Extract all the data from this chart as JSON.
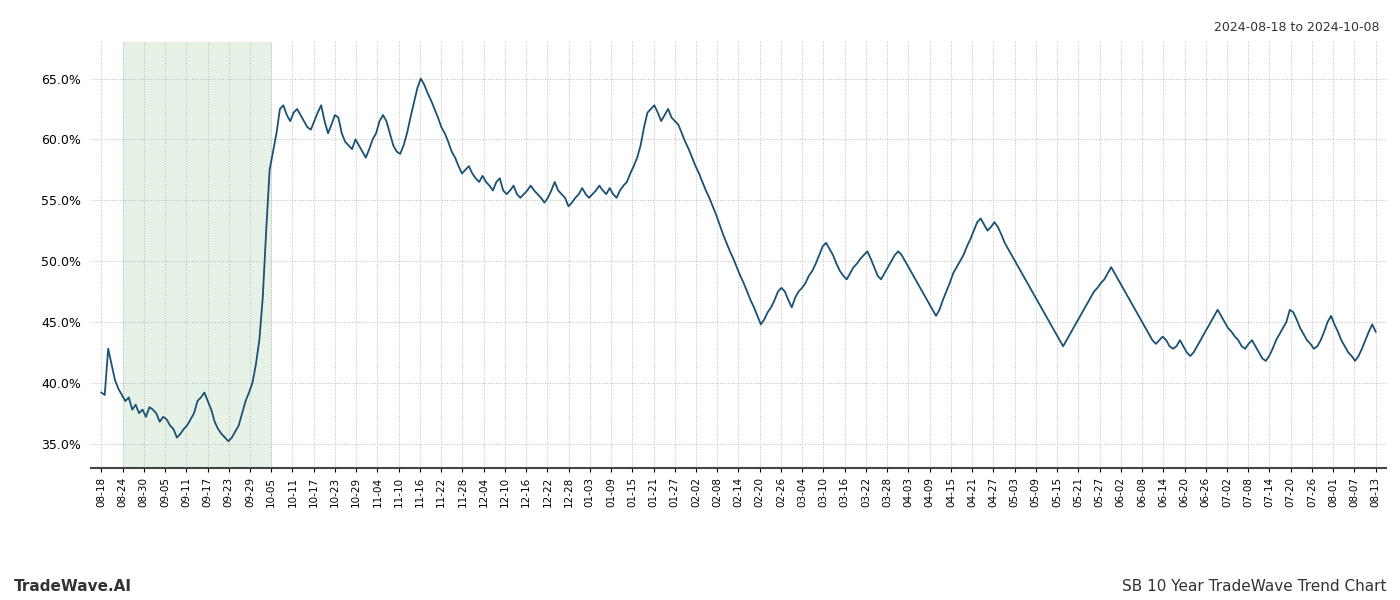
{
  "title_date_range": "2024-08-18 to 2024-10-08",
  "title_chart": "SB 10 Year TradeWave Trend Chart",
  "title_brand": "TradeWave.AI",
  "line_color": "#1a5276",
  "line_width": 1.3,
  "shade_color": "#d5e8d4",
  "shade_alpha": 0.55,
  "background_color": "#ffffff",
  "grid_color": "#bbbbbb",
  "ylim": [
    33.0,
    68.0
  ],
  "yticks": [
    35.0,
    40.0,
    45.0,
    50.0,
    55.0,
    60.0,
    65.0
  ],
  "x_labels": [
    "08-18",
    "08-24",
    "08-30",
    "09-05",
    "09-11",
    "09-17",
    "09-23",
    "09-29",
    "10-05",
    "10-11",
    "10-17",
    "10-23",
    "10-29",
    "11-04",
    "11-10",
    "11-16",
    "11-22",
    "11-28",
    "12-04",
    "12-10",
    "12-16",
    "12-22",
    "12-28",
    "01-03",
    "01-09",
    "01-15",
    "01-21",
    "01-27",
    "02-02",
    "02-08",
    "02-14",
    "02-20",
    "02-26",
    "03-04",
    "03-10",
    "03-16",
    "03-22",
    "03-28",
    "04-03",
    "04-09",
    "04-15",
    "04-21",
    "04-27",
    "05-03",
    "05-09",
    "05-15",
    "05-21",
    "05-27",
    "06-02",
    "06-08",
    "06-14",
    "06-20",
    "06-26",
    "07-02",
    "07-08",
    "07-14",
    "07-20",
    "07-26",
    "08-01",
    "08-07",
    "08-13"
  ],
  "shade_start_label": "08-24",
  "shade_end_label": "10-05",
  "values": [
    39.2,
    39.0,
    42.8,
    41.5,
    40.2,
    39.5,
    39.0,
    38.5,
    38.8,
    37.8,
    38.2,
    37.5,
    37.8,
    37.2,
    38.0,
    37.8,
    37.5,
    36.8,
    37.2,
    37.0,
    36.5,
    36.2,
    35.5,
    35.8,
    36.2,
    36.5,
    37.0,
    37.5,
    38.5,
    38.8,
    39.2,
    38.5,
    37.8,
    36.8,
    36.2,
    35.8,
    35.5,
    35.2,
    35.5,
    36.0,
    36.5,
    37.5,
    38.5,
    39.2,
    40.0,
    41.5,
    43.5,
    47.0,
    52.5,
    57.5,
    59.0,
    60.5,
    62.5,
    62.8,
    62.0,
    61.5,
    62.2,
    62.5,
    62.0,
    61.5,
    61.0,
    60.8,
    61.5,
    62.2,
    62.8,
    61.5,
    60.5,
    61.2,
    62.0,
    61.8,
    60.5,
    59.8,
    59.5,
    59.2,
    60.0,
    59.5,
    59.0,
    58.5,
    59.2,
    60.0,
    60.5,
    61.5,
    62.0,
    61.5,
    60.5,
    59.5,
    59.0,
    58.8,
    59.5,
    60.5,
    61.8,
    63.0,
    64.2,
    65.0,
    64.5,
    63.8,
    63.2,
    62.5,
    61.8,
    61.0,
    60.5,
    59.8,
    59.0,
    58.5,
    57.8,
    57.2,
    57.5,
    57.8,
    57.2,
    56.8,
    56.5,
    57.0,
    56.5,
    56.2,
    55.8,
    56.5,
    56.8,
    55.8,
    55.5,
    55.8,
    56.2,
    55.5,
    55.2,
    55.5,
    55.8,
    56.2,
    55.8,
    55.5,
    55.2,
    54.8,
    55.2,
    55.8,
    56.5,
    55.8,
    55.5,
    55.2,
    54.5,
    54.8,
    55.2,
    55.5,
    56.0,
    55.5,
    55.2,
    55.5,
    55.8,
    56.2,
    55.8,
    55.5,
    56.0,
    55.5,
    55.2,
    55.8,
    56.2,
    56.5,
    57.2,
    57.8,
    58.5,
    59.5,
    61.0,
    62.2,
    62.5,
    62.8,
    62.2,
    61.5,
    62.0,
    62.5,
    61.8,
    61.5,
    61.2,
    60.5,
    59.8,
    59.2,
    58.5,
    57.8,
    57.2,
    56.5,
    55.8,
    55.2,
    54.5,
    53.8,
    53.0,
    52.2,
    51.5,
    50.8,
    50.2,
    49.5,
    48.8,
    48.2,
    47.5,
    46.8,
    46.2,
    45.5,
    44.8,
    45.2,
    45.8,
    46.2,
    46.8,
    47.5,
    47.8,
    47.5,
    46.8,
    46.2,
    47.0,
    47.5,
    47.8,
    48.2,
    48.8,
    49.2,
    49.8,
    50.5,
    51.2,
    51.5,
    51.0,
    50.5,
    49.8,
    49.2,
    48.8,
    48.5,
    49.0,
    49.5,
    49.8,
    50.2,
    50.5,
    50.8,
    50.2,
    49.5,
    48.8,
    48.5,
    49.0,
    49.5,
    50.0,
    50.5,
    50.8,
    50.5,
    50.0,
    49.5,
    49.0,
    48.5,
    48.0,
    47.5,
    47.0,
    46.5,
    46.0,
    45.5,
    46.0,
    46.8,
    47.5,
    48.2,
    49.0,
    49.5,
    50.0,
    50.5,
    51.2,
    51.8,
    52.5,
    53.2,
    53.5,
    53.0,
    52.5,
    52.8,
    53.2,
    52.8,
    52.2,
    51.5,
    51.0,
    50.5,
    50.0,
    49.5,
    49.0,
    48.5,
    48.0,
    47.5,
    47.0,
    46.5,
    46.0,
    45.5,
    45.0,
    44.5,
    44.0,
    43.5,
    43.0,
    43.5,
    44.0,
    44.5,
    45.0,
    45.5,
    46.0,
    46.5,
    47.0,
    47.5,
    47.8,
    48.2,
    48.5,
    49.0,
    49.5,
    49.0,
    48.5,
    48.0,
    47.5,
    47.0,
    46.5,
    46.0,
    45.5,
    45.0,
    44.5,
    44.0,
    43.5,
    43.2,
    43.5,
    43.8,
    43.5,
    43.0,
    42.8,
    43.0,
    43.5,
    43.0,
    42.5,
    42.2,
    42.5,
    43.0,
    43.5,
    44.0,
    44.5,
    45.0,
    45.5,
    46.0,
    45.5,
    45.0,
    44.5,
    44.2,
    43.8,
    43.5,
    43.0,
    42.8,
    43.2,
    43.5,
    43.0,
    42.5,
    42.0,
    41.8,
    42.2,
    42.8,
    43.5,
    44.0,
    44.5,
    45.0,
    46.0,
    45.8,
    45.2,
    44.5,
    44.0,
    43.5,
    43.2,
    42.8,
    43.0,
    43.5,
    44.2,
    45.0,
    45.5,
    44.8,
    44.2,
    43.5,
    43.0,
    42.5,
    42.2,
    41.8,
    42.2,
    42.8,
    43.5,
    44.2,
    44.8,
    44.2
  ]
}
